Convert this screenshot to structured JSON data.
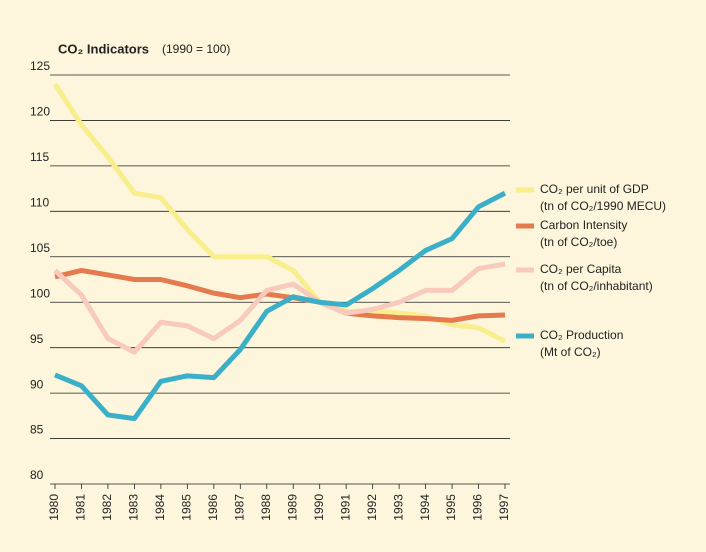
{
  "chart_data": {
    "type": "line",
    "title": "CO₂ Indicators",
    "subtitle": "(1990 = 100)",
    "categories": [
      "1980",
      "1981",
      "1982",
      "1983",
      "1984",
      "1985",
      "1986",
      "1987",
      "1988",
      "1989",
      "1990",
      "1991",
      "1992",
      "1993",
      "1994",
      "1995",
      "1996",
      "1997"
    ],
    "series": [
      {
        "name": "CO₂ per unit of GDP",
        "unit": "(tn of CO₂/1990 MECU)",
        "color": "#f8ee8c",
        "values": [
          124,
          119.5,
          116,
          112,
          111.5,
          108,
          105,
          105,
          105,
          103.5,
          100,
          99,
          99,
          98.8,
          98.5,
          97.5,
          97.2,
          95.7
        ]
      },
      {
        "name": "Carbon Intensity",
        "unit": "(tn of CO₂/toe)",
        "color": "#e57a4e",
        "values": [
          102.8,
          103.5,
          103,
          102.5,
          102.5,
          101.8,
          101,
          100.5,
          100.9,
          100.5,
          100,
          98.8,
          98.5,
          98.3,
          98.2,
          98,
          98.5,
          98.6
        ]
      },
      {
        "name": "CO₂ per Capita",
        "unit": "(tn of CO₂/inhabitant)",
        "color": "#f8cabd",
        "values": [
          103.5,
          100.8,
          96,
          94.5,
          97.8,
          97.4,
          96,
          98,
          101.3,
          102,
          100,
          98.8,
          99.2,
          100,
          101.3,
          101.3,
          103.7,
          104.2
        ]
      },
      {
        "name": "CO₂ Production",
        "unit": "(Mt of CO₂)",
        "color": "#3aafc8",
        "values": [
          92,
          90.8,
          87.6,
          87.2,
          91.3,
          91.9,
          91.7,
          94.8,
          99,
          100.6,
          100,
          99.7,
          101.5,
          103.5,
          105.7,
          107,
          110.5,
          112
        ]
      }
    ],
    "ylim": [
      80,
      125
    ],
    "yticks": [
      80,
      85,
      90,
      95,
      100,
      105,
      110,
      115,
      120,
      125
    ],
    "grid": true
  }
}
